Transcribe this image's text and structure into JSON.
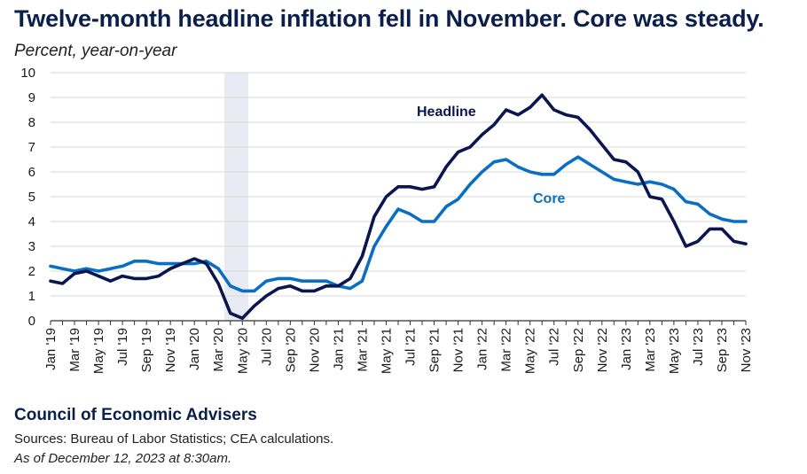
{
  "chart_data": {
    "type": "line",
    "title": "Twelve-month headline inflation fell in November. Core was steady.",
    "subtitle": "Percent, year-on-year",
    "xlabel": "",
    "ylabel": "Percent, year-on-year",
    "ylim": [
      0,
      10
    ],
    "yticks": [
      "0",
      "1",
      "2",
      "3",
      "4",
      "5",
      "6",
      "7",
      "8",
      "9",
      "10"
    ],
    "grid": true,
    "x": [
      "Jan '19",
      "Feb '19",
      "Mar '19",
      "Apr '19",
      "May '19",
      "Jun '19",
      "Jul '19",
      "Aug '19",
      "Sep '19",
      "Oct '19",
      "Nov '19",
      "Dec '19",
      "Jan '20",
      "Feb '20",
      "Mar '20",
      "Apr '20",
      "May '20",
      "Jun '20",
      "Jul '20",
      "Aug '20",
      "Sep '20",
      "Oct '20",
      "Nov '20",
      "Dec '20",
      "Jan '21",
      "Feb '21",
      "Mar '21",
      "Apr '21",
      "May '21",
      "Jun '21",
      "Jul '21",
      "Aug '21",
      "Sep '21",
      "Oct '21",
      "Nov '21",
      "Dec '21",
      "Jan '22",
      "Feb '22",
      "Mar '22",
      "Apr '22",
      "May '22",
      "Jun '22",
      "Jul '22",
      "Aug '22",
      "Sep '22",
      "Oct '22",
      "Nov '22",
      "Dec '22",
      "Jan '23",
      "Feb '23",
      "Mar '23",
      "Apr '23",
      "May '23",
      "Jun '23",
      "Jul '23",
      "Aug '23",
      "Sep '23",
      "Oct '23",
      "Nov '23"
    ],
    "tick_labels": [
      "Jan '19",
      "Mar '19",
      "May '19",
      "Jul '19",
      "Sep '19",
      "Nov '19",
      "Jan '20",
      "Mar '20",
      "May '20",
      "Jul '20",
      "Sep '20",
      "Nov '20",
      "Jan '21",
      "Mar '21",
      "May '21",
      "Jul '21",
      "Sep '21",
      "Nov '21",
      "Jan '22",
      "Mar '22",
      "May '22",
      "Jul '22",
      "Sep '22",
      "Nov '22",
      "Jan '23",
      "Mar '23",
      "May '23",
      "Jul '23",
      "Sep '23",
      "Nov '23"
    ],
    "recession_shading": {
      "start": "Apr '20",
      "end": "May '20"
    },
    "series": [
      {
        "name": "Headline",
        "color": "#0b1650",
        "values": [
          1.6,
          1.5,
          1.9,
          2.0,
          1.8,
          1.6,
          1.8,
          1.7,
          1.7,
          1.8,
          2.1,
          2.3,
          2.5,
          2.3,
          1.5,
          0.3,
          0.1,
          0.6,
          1.0,
          1.3,
          1.4,
          1.2,
          1.2,
          1.4,
          1.4,
          1.7,
          2.6,
          4.2,
          5.0,
          5.4,
          5.4,
          5.3,
          5.4,
          6.2,
          6.8,
          7.0,
          7.5,
          7.9,
          8.5,
          8.3,
          8.6,
          9.1,
          8.5,
          8.3,
          8.2,
          7.7,
          7.1,
          6.5,
          6.4,
          6.0,
          5.0,
          4.9,
          4.0,
          3.0,
          3.2,
          3.7,
          3.7,
          3.2,
          3.1
        ]
      },
      {
        "name": "Core",
        "color": "#0a6fc2",
        "values": [
          2.2,
          2.1,
          2.0,
          2.1,
          2.0,
          2.1,
          2.2,
          2.4,
          2.4,
          2.3,
          2.3,
          2.3,
          2.3,
          2.4,
          2.1,
          1.4,
          1.2,
          1.2,
          1.6,
          1.7,
          1.7,
          1.6,
          1.6,
          1.6,
          1.4,
          1.3,
          1.6,
          3.0,
          3.8,
          4.5,
          4.3,
          4.0,
          4.0,
          4.6,
          4.9,
          5.5,
          6.0,
          6.4,
          6.5,
          6.2,
          6.0,
          5.9,
          5.9,
          6.3,
          6.6,
          6.3,
          6.0,
          5.7,
          5.6,
          5.5,
          5.6,
          5.5,
          5.3,
          4.8,
          4.7,
          4.3,
          4.1,
          4.0,
          4.0
        ]
      }
    ],
    "annotations": [
      "Headline",
      "Core"
    ]
  },
  "footer": {
    "org": "Council of Economic Advisers",
    "sources": "Sources: Bureau of Labor Statistics; CEA calculations.",
    "date": "As of December 12, 2023 at 8:30am."
  }
}
